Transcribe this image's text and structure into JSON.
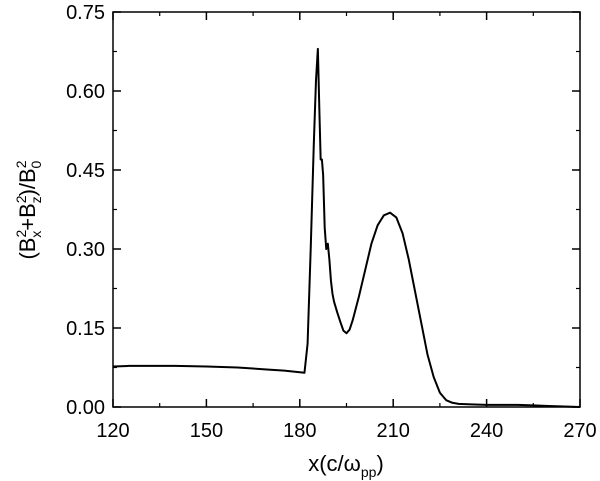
{
  "chart_data": {
    "type": "line",
    "xlabel": {
      "main": "x(c/ω",
      "sub": "pp",
      "close": ")"
    },
    "ylabel": {
      "open": "(B",
      "x_sup": "2",
      "x_sub": "x",
      "plus": "+B",
      "z_sup": "2",
      "z_sub": "z",
      "mid": ")/B",
      "zero_sup": "2",
      "zero_sub": "0"
    },
    "xlim": [
      120,
      270
    ],
    "ylim": [
      0,
      0.75
    ],
    "xticks": [
      120,
      150,
      180,
      210,
      240,
      270
    ],
    "yticks": [
      0.0,
      0.15,
      0.3,
      0.45,
      0.6,
      0.75
    ],
    "xtick_labels": [
      "120",
      "150",
      "180",
      "210",
      "240",
      "270"
    ],
    "ytick_labels": [
      "0.00",
      "0.15",
      "0.30",
      "0.45",
      "0.60",
      "0.75"
    ],
    "grid": false,
    "series": [
      {
        "color": "#000000",
        "x": [
          120,
          125,
          130,
          140,
          150,
          160,
          170,
          175,
          180,
          181.5,
          182.5,
          183.5,
          184.5,
          185.2,
          185.8,
          186.3,
          186.7,
          187.1,
          187.5,
          188,
          188.5,
          189,
          189.5,
          190,
          190.5,
          191,
          192,
          193,
          194,
          195,
          196,
          197,
          199,
          201,
          203,
          205,
          207,
          209,
          211,
          213,
          215,
          217,
          219,
          221,
          223,
          225,
          227,
          229,
          231,
          235,
          240,
          245,
          250,
          255,
          260,
          265,
          270
        ],
        "y": [
          0.077,
          0.078,
          0.078,
          0.078,
          0.077,
          0.075,
          0.071,
          0.069,
          0.066,
          0.065,
          0.12,
          0.3,
          0.5,
          0.62,
          0.68,
          0.56,
          0.47,
          0.47,
          0.44,
          0.34,
          0.3,
          0.31,
          0.28,
          0.24,
          0.215,
          0.2,
          0.18,
          0.162,
          0.145,
          0.14,
          0.147,
          0.165,
          0.21,
          0.26,
          0.31,
          0.345,
          0.364,
          0.369,
          0.36,
          0.33,
          0.28,
          0.22,
          0.16,
          0.1,
          0.057,
          0.027,
          0.013,
          0.008,
          0.006,
          0.005,
          0.004,
          0.004,
          0.004,
          0.003,
          0.002,
          0.001,
          0.0
        ]
      }
    ]
  }
}
